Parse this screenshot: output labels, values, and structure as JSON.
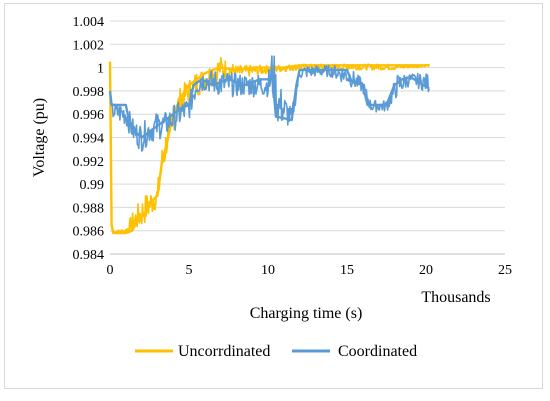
{
  "chart_data": {
    "type": "line",
    "title": "",
    "xlabel": "Charging time (s)",
    "x_unit_label": "Thousands",
    "ylabel": "Voltage (pu)",
    "xlim": [
      0,
      25
    ],
    "ylim": [
      0.984,
      1.004
    ],
    "x_ticks": [
      "0",
      "5",
      "10",
      "15",
      "20",
      "25"
    ],
    "y_ticks": [
      "0.984",
      "0.986",
      "0.988",
      "0.99",
      "0.992",
      "0.994",
      "0.996",
      "0.998",
      "1",
      "1.002",
      "1.004"
    ],
    "grid": "horizontal",
    "legend": "bottom",
    "series": [
      {
        "name": "Uncorrdinated",
        "color": "#FFC000",
        "points": [
          [
            0,
            1.0005
          ],
          [
            0.1,
            0.9865
          ],
          [
            0.2,
            0.9858
          ],
          [
            1.0,
            0.9858
          ],
          [
            1.4,
            0.986
          ],
          [
            1.8,
            0.987
          ],
          [
            2.2,
            0.9875
          ],
          [
            2.6,
            0.9885
          ],
          [
            3.0,
            0.989
          ],
          [
            3.3,
            0.992
          ],
          [
            3.6,
            0.9935
          ],
          [
            4.0,
            0.996
          ],
          [
            4.5,
            0.9975
          ],
          [
            5.0,
            0.9985
          ],
          [
            5.5,
            0.999
          ],
          [
            6.0,
            0.9995
          ],
          [
            6.5,
            0.9998
          ],
          [
            7.0,
            1.0
          ],
          [
            8.0,
            0.9998
          ],
          [
            9.0,
            1.0
          ],
          [
            10.0,
            1.0
          ],
          [
            11.0,
            1.0
          ],
          [
            12.0,
            1.0002
          ],
          [
            14.0,
            1.0002
          ],
          [
            16.0,
            1.0002
          ],
          [
            18.0,
            1.0002
          ],
          [
            20.2,
            1.0002
          ]
        ],
        "noise_band": [
          [
            0.2,
            0.9858,
            0.986
          ],
          [
            1.0,
            0.9858,
            0.9862
          ],
          [
            1.5,
            0.9858,
            0.9878
          ],
          [
            2.0,
            0.9862,
            0.9888
          ],
          [
            2.5,
            0.987,
            0.9895
          ],
          [
            3.0,
            0.988,
            0.99
          ],
          [
            3.3,
            0.99,
            0.9935
          ],
          [
            3.6,
            0.9925,
            0.995
          ],
          [
            4.0,
            0.9945,
            0.997
          ],
          [
            4.5,
            0.996,
            0.9985
          ],
          [
            5.0,
            0.997,
            0.999
          ],
          [
            5.5,
            0.9975,
            0.9998
          ],
          [
            6.0,
            0.998,
            1.0
          ],
          [
            7.0,
            0.999,
            1.001
          ],
          [
            8.0,
            0.999,
            1.0002
          ],
          [
            10.0,
            0.9995,
            1.0002
          ],
          [
            12.0,
            0.9998,
            1.0003
          ],
          [
            15.0,
            0.9998,
            1.0003
          ],
          [
            18.0,
            0.9998,
            1.0003
          ],
          [
            20.2,
            1.0001,
            1.0003
          ]
        ]
      },
      {
        "name": "Coordinated",
        "color": "#5B9BD5",
        "points": [
          [
            0,
            0.998
          ],
          [
            0.1,
            0.9968
          ],
          [
            1.0,
            0.9968
          ],
          [
            1.2,
            0.9955
          ],
          [
            1.6,
            0.9945
          ],
          [
            2.0,
            0.994
          ],
          [
            2.5,
            0.9945
          ],
          [
            3.0,
            0.995
          ],
          [
            3.5,
            0.9955
          ],
          [
            4.0,
            0.996
          ],
          [
            4.5,
            0.9965
          ],
          [
            5.0,
            0.9968
          ],
          [
            5.3,
            0.9985
          ],
          [
            5.8,
            0.999
          ],
          [
            6.5,
            0.9985
          ],
          [
            7.5,
            0.999
          ],
          [
            8.5,
            0.9985
          ],
          [
            9.5,
            0.999
          ],
          [
            10.3,
            0.999
          ],
          [
            10.5,
            0.9958
          ],
          [
            11.5,
            0.9955
          ],
          [
            11.8,
            0.9985
          ],
          [
            12.0,
            0.9998
          ],
          [
            14.0,
            0.9998
          ],
          [
            15.0,
            0.9998
          ],
          [
            15.3,
            0.9988
          ],
          [
            16.0,
            0.9985
          ],
          [
            16.3,
            0.9968
          ],
          [
            17.5,
            0.9968
          ],
          [
            18.0,
            0.9985
          ],
          [
            18.5,
            0.999
          ],
          [
            19.0,
            0.9992
          ],
          [
            20.2,
            0.9982
          ]
        ],
        "noise_band": [
          [
            0.1,
            0.9955,
            0.997
          ],
          [
            1.0,
            0.995,
            0.997
          ],
          [
            1.5,
            0.9935,
            0.9955
          ],
          [
            2.0,
            0.9928,
            0.9952
          ],
          [
            2.5,
            0.9935,
            0.9958
          ],
          [
            3.0,
            0.9938,
            0.9962
          ],
          [
            3.5,
            0.994,
            0.9962
          ],
          [
            4.0,
            0.9945,
            0.9968
          ],
          [
            4.5,
            0.995,
            0.9972
          ],
          [
            5.0,
            0.9955,
            0.9975
          ],
          [
            5.5,
            0.9975,
            1.0
          ],
          [
            6.0,
            0.998,
            0.9998
          ],
          [
            7.0,
            0.9975,
            0.9998
          ],
          [
            8.0,
            0.9975,
            0.9995
          ],
          [
            9.0,
            0.9975,
            0.9995
          ],
          [
            10.0,
            0.9975,
            0.9995
          ],
          [
            10.3,
            0.997,
            1.002
          ],
          [
            10.6,
            0.995,
            0.999
          ],
          [
            11.5,
            0.9948,
            0.9965
          ],
          [
            12.0,
            0.999,
            1.0002
          ],
          [
            13.0,
            0.9992,
            1.0002
          ],
          [
            14.0,
            0.9992,
            1.0002
          ],
          [
            15.0,
            0.9985,
            1.0002
          ],
          [
            16.0,
            0.9978,
            0.999
          ],
          [
            16.5,
            0.9962,
            0.9972
          ],
          [
            17.5,
            0.9962,
            0.9972
          ],
          [
            18.2,
            0.9975,
            0.9995
          ],
          [
            19.0,
            0.9985,
            0.9995
          ],
          [
            20.2,
            0.9978,
            0.9995
          ]
        ]
      }
    ]
  }
}
